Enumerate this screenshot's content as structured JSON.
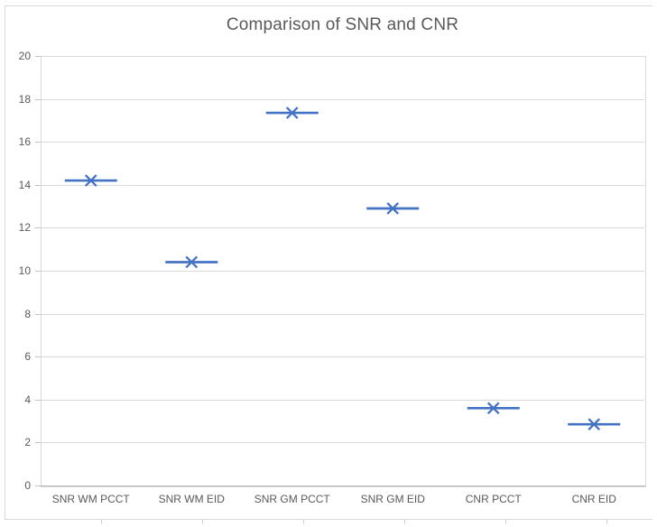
{
  "chart_data": {
    "type": "scatter",
    "title": "Comparison of SNR and CNR",
    "categories": [
      "SNR WM PCCT",
      "SNR WM EID",
      "SNR GM PCCT",
      "SNR GM EID",
      "CNR PCCT",
      "CNR EID"
    ],
    "values": [
      14.2,
      10.4,
      17.35,
      12.9,
      3.6,
      2.85
    ],
    "xlabel": "",
    "ylabel": "",
    "ylim": [
      0,
      20
    ],
    "ytick_step": 2,
    "grid": "horizontal",
    "legend": "none",
    "marker_style": "x-with-horizontal-dash"
  },
  "colors": {
    "marker": "#4472C4",
    "title_text": "#595959",
    "axis_text": "#595959",
    "gridline": "#D9D9D9",
    "axis_line": "#B7B7B7",
    "chart_border": "#D9D9D9",
    "background": "#FFFFFF"
  }
}
